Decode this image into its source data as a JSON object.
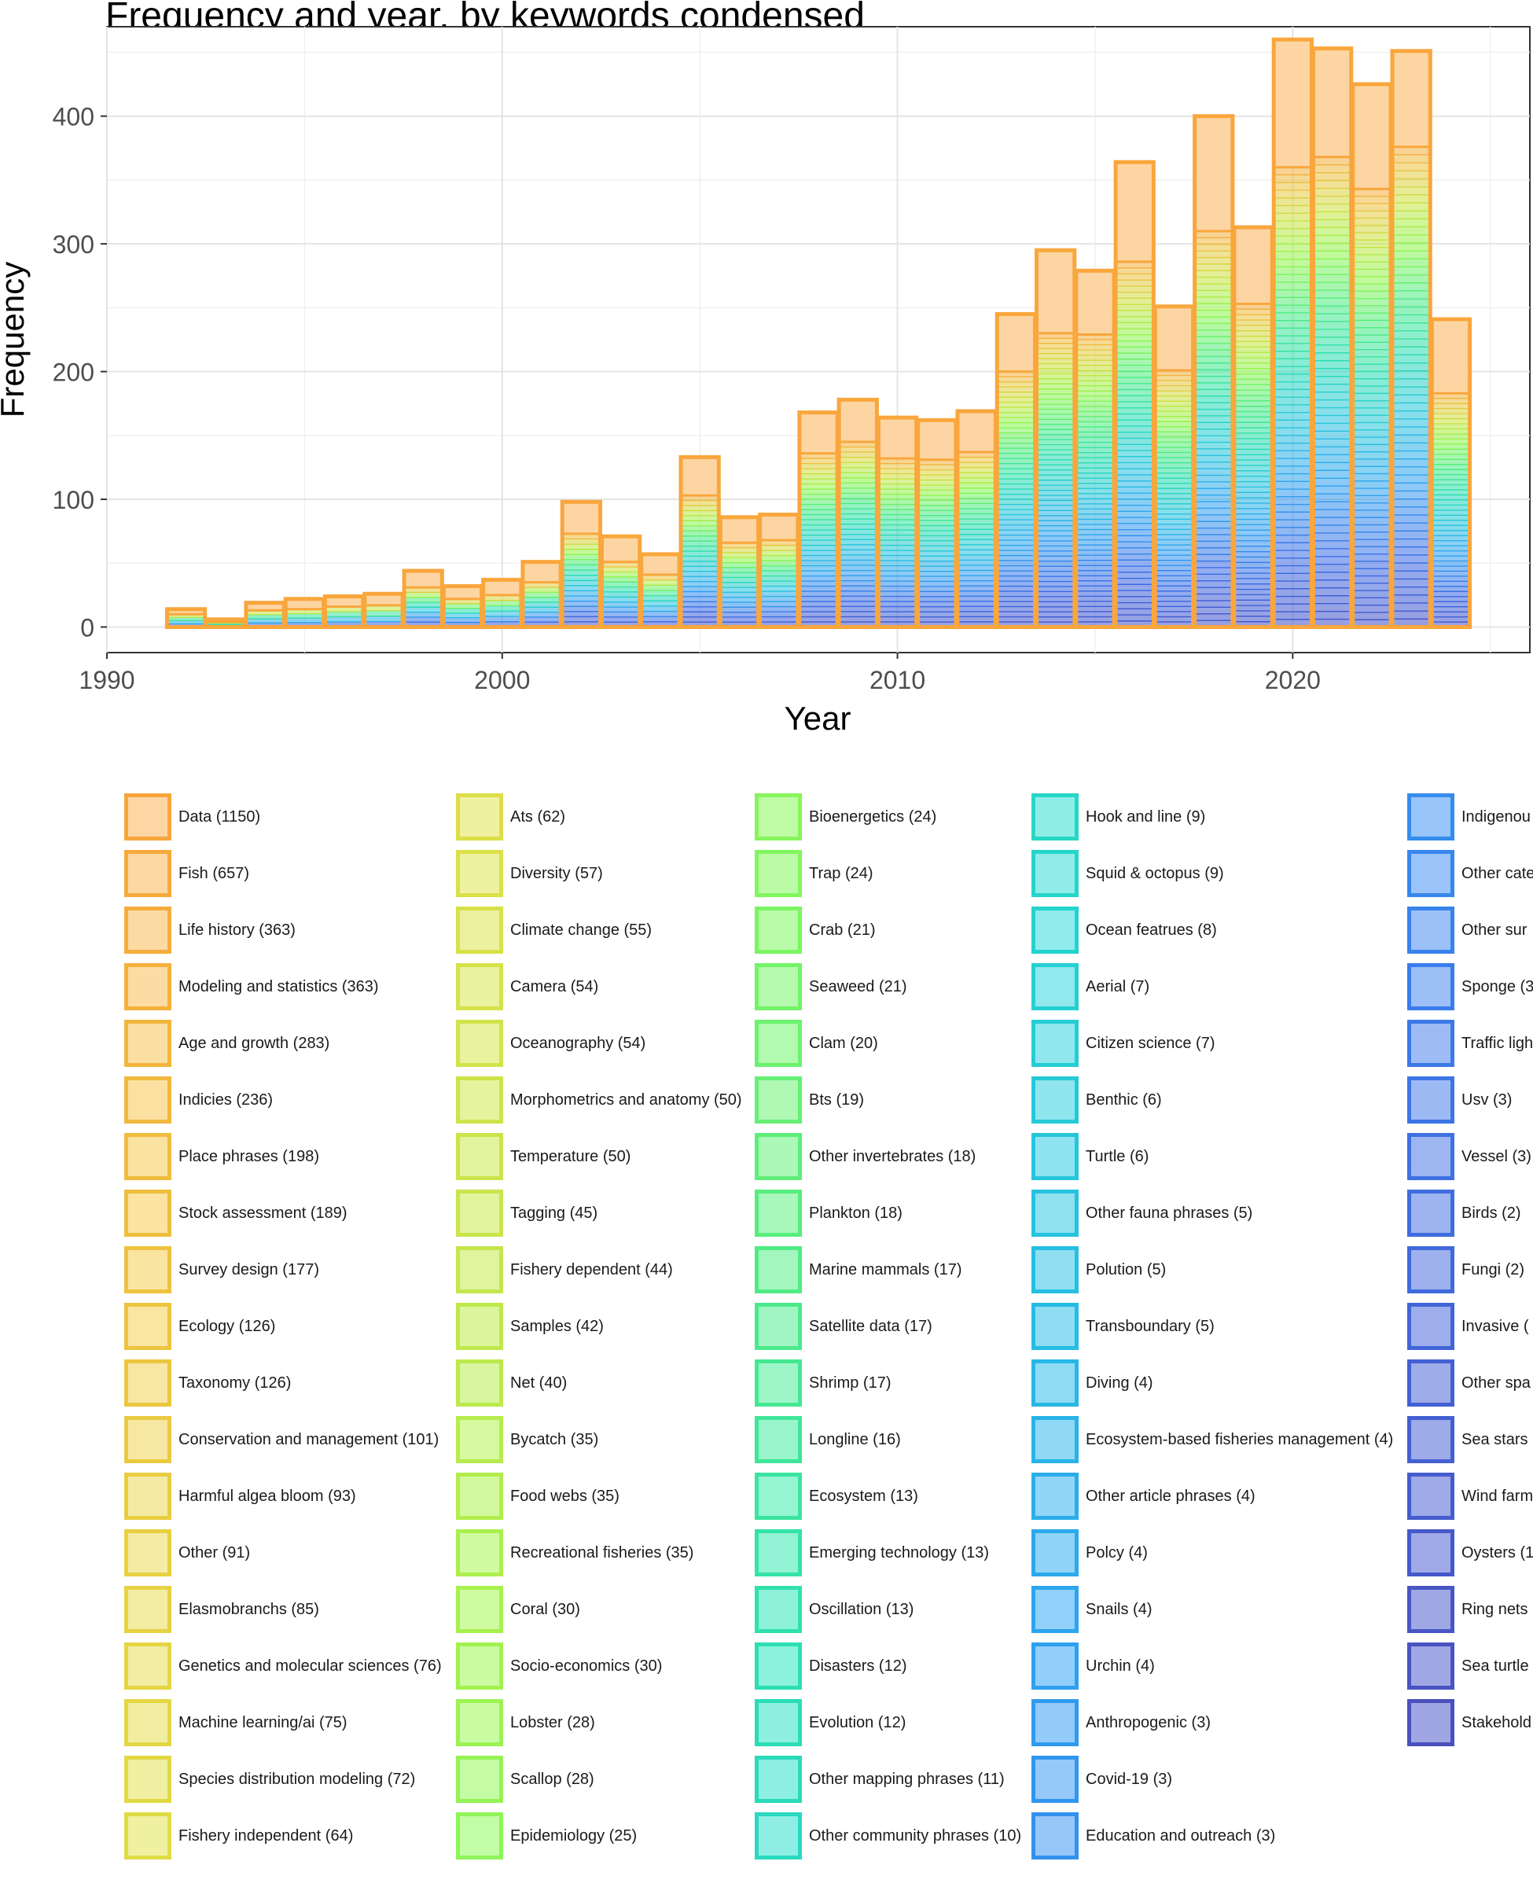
{
  "chart_data": {
    "type": "bar",
    "subtype": "stacked histogram",
    "title": "Frequency and year, by keywords condensed",
    "xlabel": "Year",
    "ylabel": "Frequency",
    "xlim": [
      1990,
      2026
    ],
    "ylim": [
      -20,
      470
    ],
    "x_ticks": [
      1990,
      2000,
      2010,
      2020
    ],
    "y_ticks": [
      0,
      100,
      200,
      300,
      400
    ],
    "grid": true,
    "legend_position": "bottom",
    "years": [
      1992,
      1993,
      1994,
      1995,
      1996,
      1997,
      1998,
      1999,
      2000,
      2001,
      2002,
      2003,
      2004,
      2005,
      2006,
      2007,
      2008,
      2009,
      2010,
      2011,
      2012,
      2013,
      2014,
      2015,
      2016,
      2017,
      2018,
      2019,
      2020,
      2021,
      2022,
      2023,
      2024
    ],
    "totals": [
      14,
      6,
      19,
      22,
      24,
      26,
      44,
      32,
      37,
      51,
      98,
      71,
      57,
      133,
      86,
      88,
      168,
      178,
      164,
      162,
      169,
      245,
      295,
      279,
      364,
      251,
      400,
      313,
      460,
      453,
      425,
      451,
      241
    ],
    "data_series_totals": [
      4,
      2,
      6,
      8,
      8,
      9,
      13,
      10,
      12,
      16,
      25,
      20,
      16,
      30,
      20,
      20,
      32,
      33,
      32,
      31,
      32,
      45,
      65,
      50,
      78,
      50,
      90,
      60,
      100,
      85,
      82,
      75,
      58
    ],
    "legend_title": "",
    "legend_columns": [
      [
        "Data (1150)",
        "Fish (657)",
        "Life history (363)",
        "Modeling and statistics (363)",
        "Age and growth (283)",
        "Indicies (236)",
        "Place phrases (198)",
        "Stock assessment (189)",
        "Survey design (177)",
        "Ecology (126)",
        "Taxonomy (126)",
        "Conservation and management (101)",
        "Harmful algea bloom (93)",
        "Other (91)",
        "Elasmobranchs (85)",
        "Genetics and molecular sciences (76)",
        "Machine learning/ai (75)",
        "Species distribution modeling (72)",
        "Fishery independent (64)"
      ],
      [
        "Ats (62)",
        "Diversity (57)",
        "Climate change (55)",
        "Camera (54)",
        "Oceanography (54)",
        "Morphometrics and anatomy (50)",
        "Temperature (50)",
        "Tagging (45)",
        "Fishery dependent (44)",
        "Samples (42)",
        "Net (40)",
        "Bycatch (35)",
        "Food webs (35)",
        "Recreational fisheries (35)",
        "Coral (30)",
        "Socio-economics (30)",
        "Lobster (28)",
        "Scallop (28)",
        "Epidemiology (25)"
      ],
      [
        "Bioenergetics (24)",
        "Trap (24)",
        "Crab (21)",
        "Seaweed (21)",
        "Clam (20)",
        "Bts (19)",
        "Other invertebrates (18)",
        "Plankton (18)",
        "Marine mammals (17)",
        "Satellite data (17)",
        "Shrimp (17)",
        "Longline (16)",
        "Ecosystem (13)",
        "Emerging technology (13)",
        "Oscillation (13)",
        "Disasters (12)",
        "Evolution (12)",
        "Other mapping phrases (11)",
        "Other community phrases (10)"
      ],
      [
        "Hook and line (9)",
        "Squid & octopus (9)",
        "Ocean featrues (8)",
        "Aerial (7)",
        "Citizen science (7)",
        "Benthic (6)",
        "Turtle (6)",
        "Other fauna phrases (5)",
        "Polution (5)",
        "Transboundary (5)",
        "Diving (4)",
        "Ecosystem-based fisheries management (4)",
        "Other article phrases (4)",
        "Polcy (4)",
        "Snails (4)",
        "Urchin (4)",
        "Anthropogenic (3)",
        "Covid-19 (3)",
        "Education and outreach (3)"
      ],
      [
        "Indigenou",
        "Other cate",
        "Other sur",
        "Sponge (3",
        "Traffic ligh",
        "Usv (3)",
        "Vessel (3)",
        "Birds (2)",
        "Fungi (2)",
        "Invasive (",
        "Other spa",
        "Sea stars",
        "Wind farm",
        "Oysters (1",
        "Ring nets",
        "Sea turtle",
        "Stakehold"
      ]
    ],
    "colors": {
      "outline_top": "#F9A63C",
      "fill_top": "#FDD5A2",
      "series_gradient": [
        "#F7A63B",
        "#EBC440",
        "#C9E33F",
        "#8CF54D",
        "#49EB82",
        "#26DCB4",
        "#26C3DE",
        "#2F9EF0",
        "#3A6CE6",
        "#4150C8"
      ],
      "legend_outline": [
        "#F7A63B",
        "#EEBE3E",
        "#E8D042",
        "#DCE046",
        "#C7E54B",
        "#A8F14C",
        "#7EF65F",
        "#50EB85",
        "#2DE0B0",
        "#24D3CF",
        "#26BDE4",
        "#2E9FF0",
        "#3A7EEB",
        "#4263D6",
        "#4A51BE"
      ],
      "legend_fill": [
        "#FDD6A4",
        "#FAE3A0",
        "#F4EBA4",
        "#EEF2A0",
        "#E1F39C",
        "#CEFBA0",
        "#BBFCA7",
        "#A4F6BF",
        "#8CF2DC",
        "#90EBEC",
        "#8FDEF2",
        "#92CDFA",
        "#9DBFF8",
        "#9EADEB",
        "#A0A6E3"
      ]
    }
  }
}
